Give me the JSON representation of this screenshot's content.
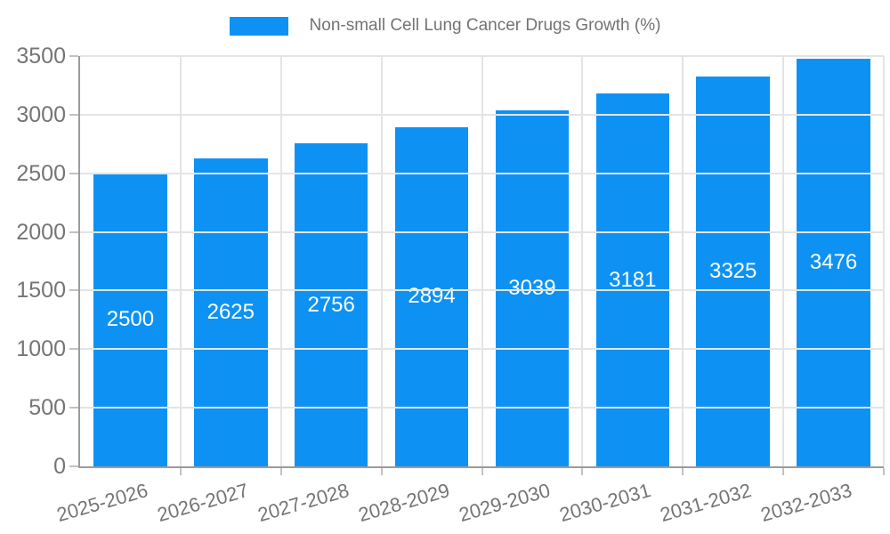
{
  "legend": {
    "label": "Non-small Cell Lung Cancer Drugs Growth (%)"
  },
  "colors": {
    "bar": "#0D92F4",
    "axis_text": "#757575",
    "value_label_text": "#FFFFFF",
    "grid_line": "#E4E4E4",
    "axis_line": "#9B9B9B",
    "tick_mark": "#C2C2C2"
  },
  "chart_data": {
    "type": "bar",
    "title": "Non-small Cell Lung Cancer Drugs Growth (%)",
    "categories": [
      "2025-2026",
      "2026-2027",
      "2027-2028",
      "2028-2029",
      "2029-2030",
      "2030-2031",
      "2031-2032",
      "2032-2033"
    ],
    "values": [
      2500,
      2625,
      2756,
      2894,
      3039,
      3181,
      3325,
      3476
    ],
    "value_labels_shown": true,
    "xlabel": "",
    "ylabel": "",
    "ylim": [
      0,
      3500
    ],
    "yticks": [
      0,
      500,
      1000,
      1500,
      2000,
      2500,
      3000,
      3500
    ],
    "grid": true,
    "legend_position": "top"
  }
}
